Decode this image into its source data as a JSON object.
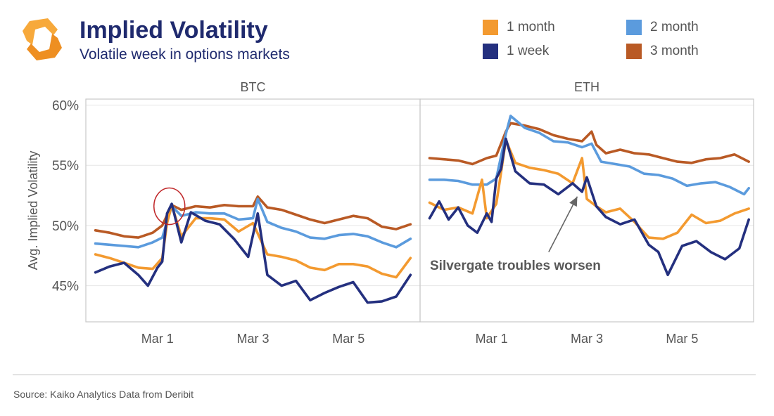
{
  "header": {
    "title": "Implied Volatility",
    "subtitle": "Volatile week in options markets"
  },
  "source": "Source: Kaiko Analytics Data from Deribit",
  "colors": {
    "1 week": "#24307f",
    "1 month": "#f39a30",
    "2 month": "#5b9bdd",
    "3 month": "#b95a25",
    "logo": "#f39a30",
    "title": "#1f2a6e",
    "annotation_circle": "#c0282a",
    "annotation_arrow": "#666666"
  },
  "legend": [
    {
      "name": "1 month",
      "color": "#f39a30"
    },
    {
      "name": "2 month",
      "color": "#5b9bdd"
    },
    {
      "name": "1 week",
      "color": "#24307f"
    },
    {
      "name": "3 month",
      "color": "#b95a25"
    }
  ],
  "chart_data": [
    {
      "type": "line",
      "title": "BTC",
      "ylabel": "Avg. Implied Volatility",
      "ylim": [
        42,
        60.5
      ],
      "yticks": [
        "60%",
        "55%",
        "50%",
        "45%"
      ],
      "ytick_values": [
        60,
        55,
        50,
        45
      ],
      "xlim": [
        0,
        7
      ],
      "xticks": [
        "Mar 1",
        "Mar 3",
        "Mar 5"
      ],
      "xtick_values": [
        1.5,
        3.5,
        5.5
      ],
      "grid": true,
      "series": [
        {
          "name": "3 month",
          "x": [
            0.2,
            0.5,
            0.8,
            1.1,
            1.4,
            1.6,
            1.8,
            2.0,
            2.3,
            2.6,
            2.9,
            3.2,
            3.5,
            3.6,
            3.8,
            4.1,
            4.4,
            4.7,
            5.0,
            5.3,
            5.6,
            5.9,
            6.2,
            6.5,
            6.8
          ],
          "y": [
            49.6,
            49.4,
            49.1,
            49.0,
            49.4,
            50.0,
            51.7,
            51.3,
            51.6,
            51.5,
            51.7,
            51.6,
            51.6,
            52.4,
            51.5,
            51.3,
            50.9,
            50.5,
            50.2,
            50.5,
            50.8,
            50.6,
            49.9,
            49.7,
            50.1
          ]
        },
        {
          "name": "2 month",
          "x": [
            0.2,
            0.5,
            0.8,
            1.1,
            1.4,
            1.6,
            1.8,
            2.0,
            2.3,
            2.6,
            2.9,
            3.2,
            3.5,
            3.6,
            3.8,
            4.1,
            4.4,
            4.7,
            5.0,
            5.3,
            5.6,
            5.9,
            6.2,
            6.5,
            6.8
          ],
          "y": [
            48.5,
            48.4,
            48.3,
            48.2,
            48.6,
            49.0,
            51.6,
            50.8,
            51.1,
            51.0,
            51.0,
            50.5,
            50.6,
            52.2,
            50.3,
            49.8,
            49.5,
            49.0,
            48.9,
            49.2,
            49.3,
            49.1,
            48.6,
            48.2,
            48.9
          ]
        },
        {
          "name": "1 month",
          "x": [
            0.2,
            0.5,
            0.8,
            1.1,
            1.4,
            1.6,
            1.7,
            1.8,
            2.0,
            2.3,
            2.6,
            2.9,
            3.2,
            3.5,
            3.8,
            4.1,
            4.4,
            4.7,
            5.0,
            5.3,
            5.6,
            5.9,
            6.2,
            6.5,
            6.8
          ],
          "y": [
            47.6,
            47.3,
            46.9,
            46.5,
            46.4,
            47.3,
            50.2,
            51.7,
            49.1,
            50.6,
            50.6,
            50.5,
            49.5,
            50.2,
            47.6,
            47.4,
            47.1,
            46.5,
            46.3,
            46.8,
            46.8,
            46.6,
            46.0,
            45.7,
            47.3
          ]
        },
        {
          "name": "1 week",
          "x": [
            0.2,
            0.5,
            0.8,
            1.1,
            1.3,
            1.5,
            1.6,
            1.7,
            1.8,
            2.0,
            2.2,
            2.5,
            2.8,
            3.1,
            3.4,
            3.6,
            3.8,
            4.1,
            4.4,
            4.7,
            5.0,
            5.3,
            5.6,
            5.9,
            6.2,
            6.5,
            6.8
          ],
          "y": [
            46.1,
            46.6,
            46.9,
            45.9,
            45.0,
            46.5,
            47.0,
            51.0,
            51.8,
            48.6,
            51.1,
            50.4,
            50.1,
            48.9,
            47.4,
            51.0,
            45.9,
            45.0,
            45.4,
            43.8,
            44.4,
            44.9,
            45.3,
            43.6,
            43.7,
            44.1,
            45.9
          ]
        }
      ],
      "annotations": [
        {
          "type": "circle",
          "x": 1.75,
          "y": 51.6
        }
      ]
    },
    {
      "type": "line",
      "title": "ETH",
      "ylim": [
        42,
        60.5
      ],
      "xlim": [
        0,
        7
      ],
      "xticks": [
        "Mar 1",
        "Mar 3",
        "Mar 5"
      ],
      "xtick_values": [
        1.5,
        3.5,
        5.5
      ],
      "grid": true,
      "series": [
        {
          "name": "3 month",
          "x": [
            0.2,
            0.5,
            0.8,
            1.1,
            1.4,
            1.6,
            1.8,
            1.9,
            2.2,
            2.5,
            2.8,
            3.1,
            3.4,
            3.6,
            3.7,
            3.9,
            4.2,
            4.5,
            4.8,
            5.1,
            5.4,
            5.7,
            6.0,
            6.3,
            6.6,
            6.9
          ],
          "y": [
            55.6,
            55.5,
            55.4,
            55.1,
            55.6,
            55.8,
            57.8,
            58.5,
            58.3,
            58.0,
            57.5,
            57.2,
            57.0,
            57.8,
            56.7,
            56.0,
            56.3,
            56.0,
            55.9,
            55.6,
            55.3,
            55.2,
            55.5,
            55.6,
            55.9,
            55.3
          ]
        },
        {
          "name": "2 month",
          "x": [
            0.2,
            0.5,
            0.8,
            1.1,
            1.4,
            1.6,
            1.8,
            1.9,
            2.2,
            2.5,
            2.8,
            3.1,
            3.4,
            3.6,
            3.8,
            4.1,
            4.4,
            4.7,
            5.0,
            5.3,
            5.6,
            5.9,
            6.2,
            6.5,
            6.8,
            6.9
          ],
          "y": [
            53.8,
            53.8,
            53.7,
            53.4,
            53.4,
            53.9,
            57.6,
            59.1,
            58.1,
            57.7,
            57.0,
            56.9,
            56.5,
            56.8,
            55.3,
            55.1,
            54.9,
            54.3,
            54.2,
            53.9,
            53.3,
            53.5,
            53.6,
            53.2,
            52.6,
            53.1
          ]
        },
        {
          "name": "1 month",
          "x": [
            0.2,
            0.5,
            0.8,
            1.1,
            1.3,
            1.4,
            1.6,
            1.7,
            1.8,
            2.0,
            2.3,
            2.6,
            2.9,
            3.2,
            3.4,
            3.5,
            3.7,
            3.9,
            4.2,
            4.5,
            4.8,
            5.1,
            5.4,
            5.7,
            6.0,
            6.3,
            6.6,
            6.9
          ],
          "y": [
            51.9,
            51.3,
            51.5,
            51.0,
            53.8,
            50.6,
            51.8,
            54.4,
            57.1,
            55.2,
            54.8,
            54.6,
            54.3,
            53.5,
            55.6,
            52.2,
            51.6,
            51.1,
            51.4,
            50.3,
            49.0,
            48.9,
            49.4,
            50.9,
            50.2,
            50.4,
            51.0,
            51.4
          ]
        },
        {
          "name": "1 week",
          "x": [
            0.2,
            0.4,
            0.6,
            0.8,
            1.0,
            1.2,
            1.4,
            1.5,
            1.6,
            1.7,
            1.8,
            2.0,
            2.3,
            2.6,
            2.9,
            3.2,
            3.4,
            3.5,
            3.7,
            3.9,
            4.2,
            4.5,
            4.8,
            5.0,
            5.2,
            5.5,
            5.8,
            6.1,
            6.4,
            6.7,
            6.9
          ],
          "y": [
            50.6,
            52.0,
            50.5,
            51.5,
            50.0,
            49.4,
            51.0,
            50.3,
            53.9,
            54.7,
            57.2,
            54.5,
            53.5,
            53.4,
            52.6,
            53.5,
            52.8,
            54.0,
            51.6,
            50.7,
            50.1,
            50.5,
            48.4,
            47.8,
            45.9,
            48.3,
            48.7,
            47.8,
            47.2,
            48.1,
            50.5
          ]
        }
      ],
      "annotations": [
        {
          "type": "arrow",
          "text": "Silvergate troubles worsen",
          "from_x": 2.7,
          "from_y": 47.8,
          "to_x": 3.3,
          "to_y": 52.4
        }
      ]
    }
  ]
}
